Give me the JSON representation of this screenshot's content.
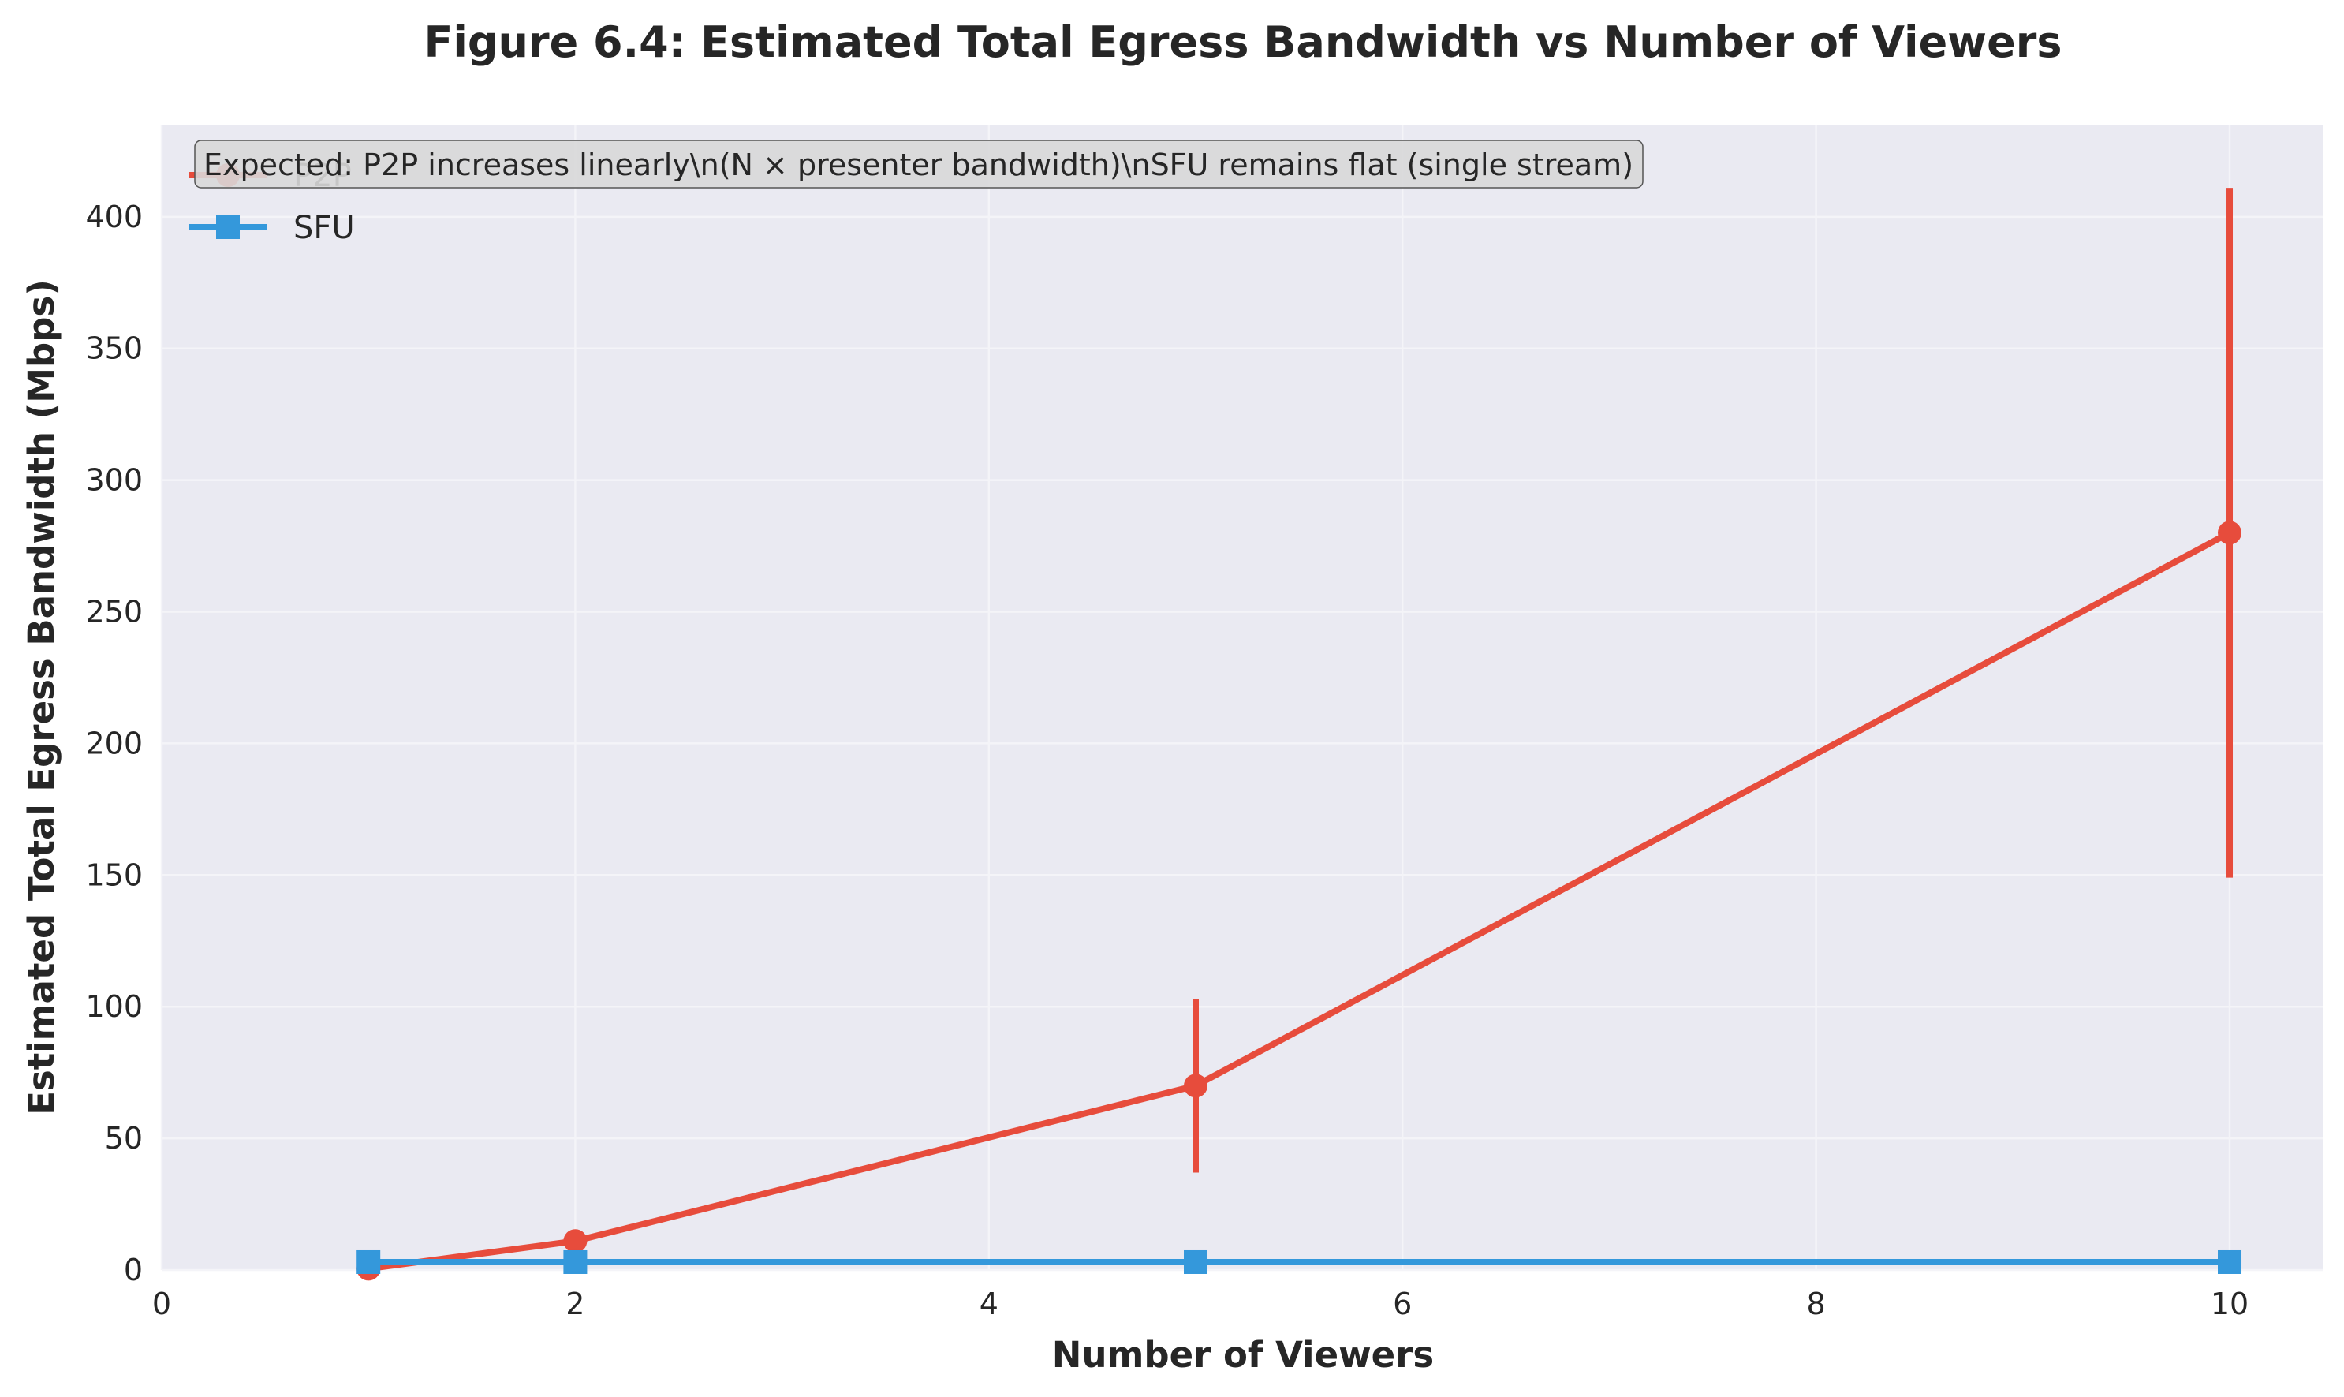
{
  "chart_data": {
    "type": "line",
    "title": "Figure 6.4: Estimated Total Egress Bandwidth vs Number of Viewers",
    "xlabel": "Number of Viewers",
    "ylabel": "Estimated Total Egress Bandwidth (Mbps)",
    "xlim": [
      0,
      10.45
    ],
    "ylim": [
      0,
      435
    ],
    "xticks": [
      0,
      2,
      4,
      6,
      8,
      10
    ],
    "yticks": [
      0,
      50,
      100,
      150,
      200,
      250,
      300,
      350,
      400
    ],
    "grid": true,
    "legend_position": "top-left",
    "annotation": "Expected: P2P increases linearly\\n(N × presenter bandwidth)\\nSFU remains flat (single stream)",
    "series": [
      {
        "name": "P2P",
        "color": "#e74c3c",
        "marker": "circle",
        "x": [
          1,
          2,
          5,
          10
        ],
        "y": [
          0.5,
          11,
          70,
          280
        ],
        "error": [
          0,
          0,
          33,
          131
        ]
      },
      {
        "name": "SFU",
        "color": "#3498db",
        "marker": "square",
        "x": [
          1,
          2,
          5,
          10
        ],
        "y": [
          3,
          3,
          3,
          3
        ],
        "error": [
          0,
          0,
          0,
          0
        ]
      }
    ],
    "colors": {
      "plot_background": "#eaeaf2",
      "grid": "#f4f4f8",
      "annotation_box": "#d8d8d8"
    }
  }
}
